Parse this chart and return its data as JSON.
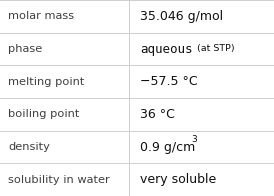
{
  "rows": [
    {
      "label": "molar mass",
      "value": "35.046 g/mol",
      "type": "plain"
    },
    {
      "label": "phase",
      "value": "aqueous",
      "type": "phase",
      "sub": " (at STP)"
    },
    {
      "label": "melting point",
      "value": "−57.5 °C",
      "type": "plain"
    },
    {
      "label": "boiling point",
      "value": "36 °C",
      "type": "plain"
    },
    {
      "label": "density",
      "value": "0.9 g/cm",
      "type": "super",
      "super": "3"
    },
    {
      "label": "solubility in water",
      "value": "very soluble",
      "type": "plain"
    }
  ],
  "bg_color": "#ffffff",
  "line_color": "#c8c8c8",
  "label_color": "#404040",
  "value_color": "#101010",
  "col_split": 0.472,
  "label_fontsize": 8.2,
  "value_fontsize": 9.0,
  "phase_fontsize": 9.0,
  "sub_fontsize": 6.8,
  "super_fontsize": 6.5
}
